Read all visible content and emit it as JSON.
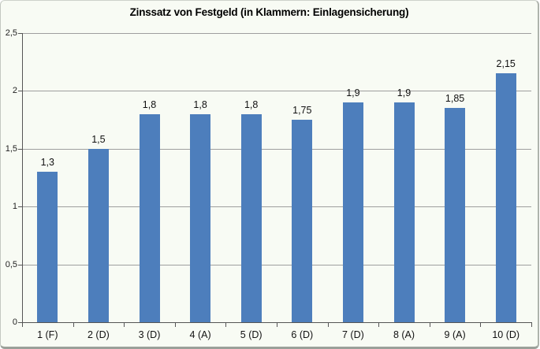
{
  "chart_data": {
    "type": "bar",
    "title": "Zinssatz von Festgeld (in Klammern: Einlagensicherung)",
    "categories": [
      "1 (F)",
      "2 (D)",
      "3 (D)",
      "4 (A)",
      "5 (D)",
      "6 (D)",
      "7 (D)",
      "8 (A)",
      "9 (A)",
      "10 (D)"
    ],
    "values": [
      1.3,
      1.5,
      1.8,
      1.8,
      1.8,
      1.75,
      1.9,
      1.9,
      1.85,
      2.15
    ],
    "value_labels": [
      "1,3",
      "1,5",
      "1,8",
      "1,8",
      "1,8",
      "1,75",
      "1,9",
      "1,9",
      "1,85",
      "2,15"
    ],
    "xlabel": "",
    "ylabel": "",
    "ylim": [
      0,
      2.5
    ],
    "yticks": [
      0,
      0.5,
      1,
      1.5,
      2,
      2.5
    ],
    "ytick_labels": [
      "0",
      "0,5",
      "1",
      "1,5",
      "2",
      "2,5"
    ],
    "grid": true,
    "legend": null,
    "decimal_separator": ",",
    "colors": {
      "bar": "#4d7ebc",
      "plot_background": "#f8fbf4",
      "gridline": "#9e9e9e",
      "axis": "#555555",
      "text": "#111111"
    }
  }
}
